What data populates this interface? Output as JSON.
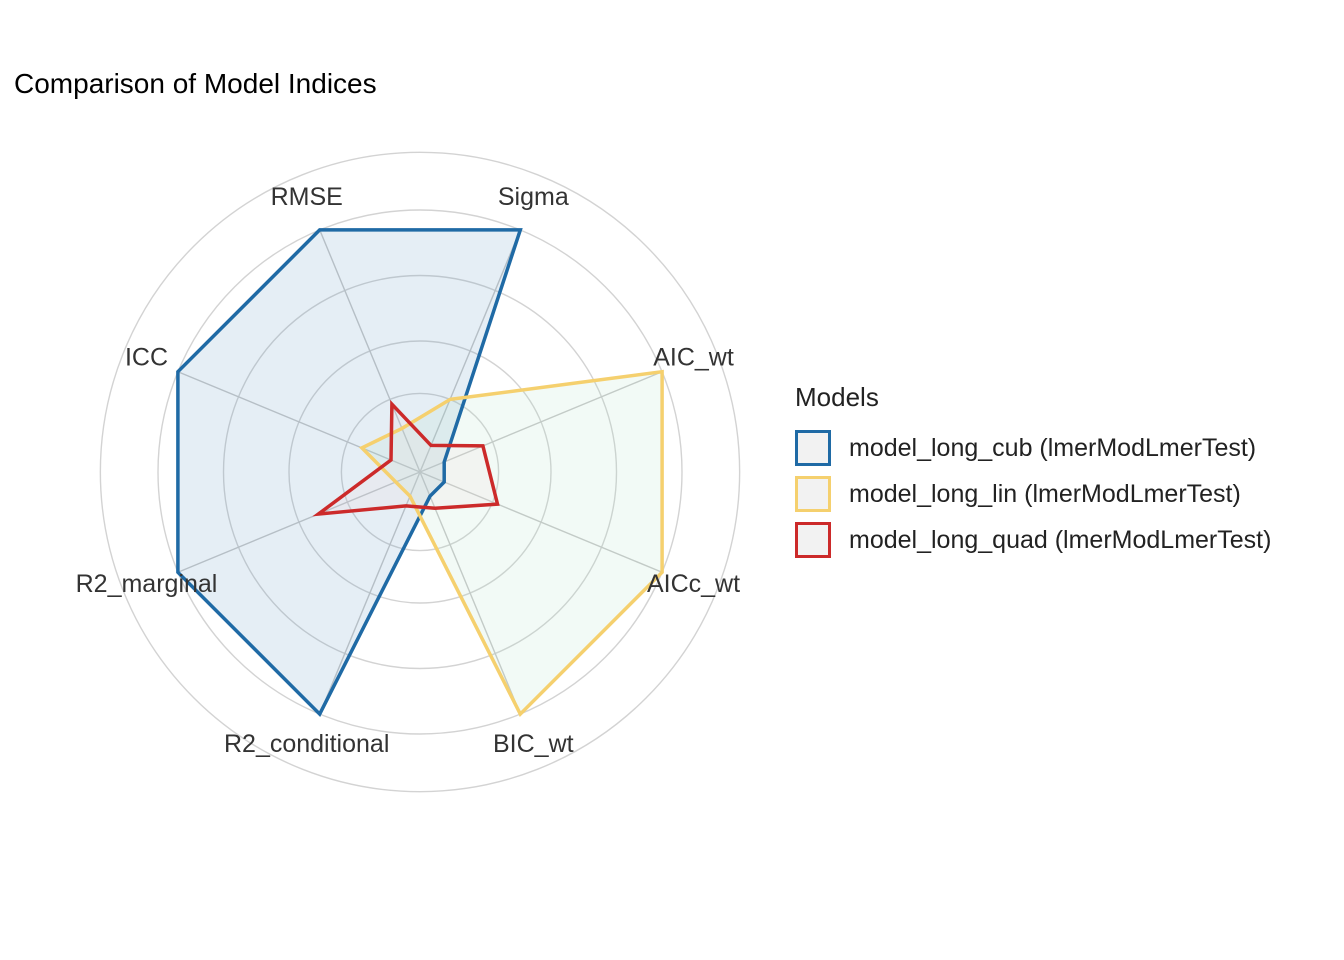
{
  "chart_data": {
    "type": "radar",
    "title": "Comparison of Model Indices",
    "axes": [
      "Sigma",
      "AIC_wt",
      "AICc_wt",
      "BIC_wt",
      "R2_conditional",
      "R2_marginal",
      "ICC",
      "RMSE"
    ],
    "range": [
      0,
      1
    ],
    "grid": true,
    "legend_title": "Models",
    "legend_position": "right",
    "series": [
      {
        "name": "model_long_cub (lmerModLmerTest)",
        "color": "#1f6aa5",
        "fill": "#4f8fbf",
        "values": [
          1.0,
          0.1,
          0.1,
          0.1,
          1.0,
          1.0,
          1.0,
          1.0
        ]
      },
      {
        "name": "model_long_lin (lmerModLmerTest)",
        "color": "#f5d06e",
        "fill": "#a8dfc0",
        "values": [
          0.3,
          1.0,
          1.0,
          1.0,
          0.1,
          0.1,
          0.24,
          0.18
        ]
      },
      {
        "name": "model_long_quad (lmerModLmerTest)",
        "color": "#cc2a2a",
        "fill": "#f1d4d4",
        "values": [
          0.11,
          0.26,
          0.32,
          0.15,
          0.14,
          0.42,
          0.12,
          0.28
        ]
      }
    ]
  }
}
